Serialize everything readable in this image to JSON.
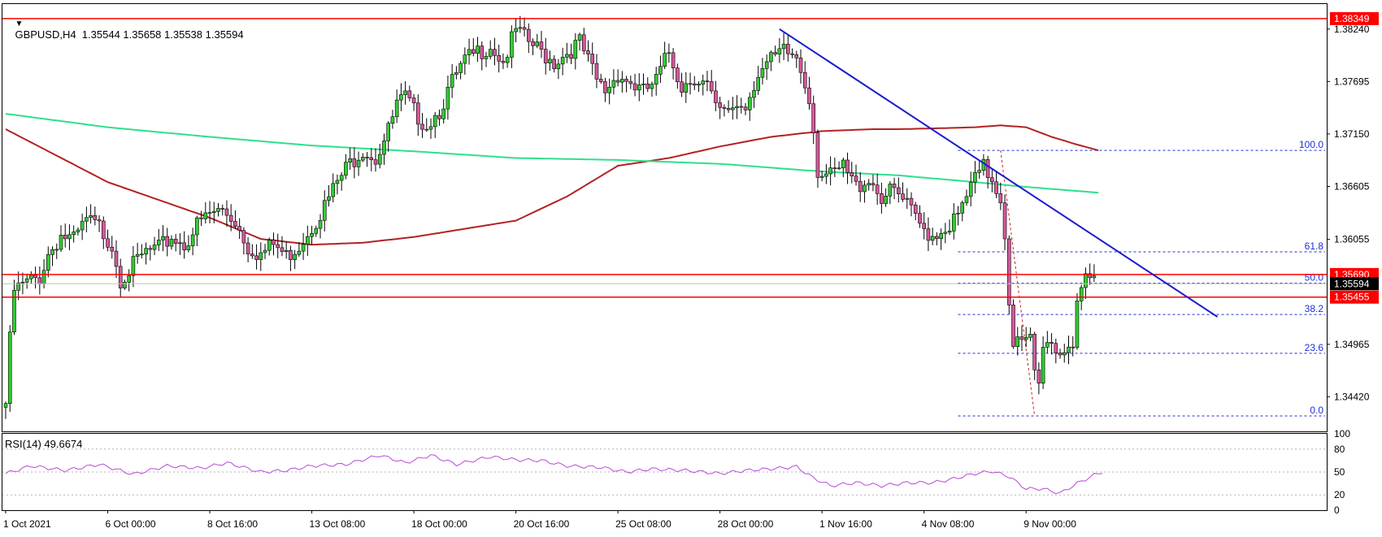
{
  "chart_header": {
    "title": "GBPUSD,H4  1.35544 1.35658 1.35538 1.35594",
    "indicator": "RSI(14) 49.6674"
  },
  "colors": {
    "bull": "#32cd32",
    "bear": "#d6589a",
    "wick": "#000000",
    "ma_slow": "#2ee08a",
    "ma_fast": "#b22222",
    "level": "#ff0000",
    "trendline": "#1a1acd",
    "fib": "#1f2fd6",
    "rsi": "#b84ad8",
    "grid": "#b4b4b4",
    "fib_zero_line": "#d01b1b"
  },
  "chart_data": [
    {
      "type": "candlestick",
      "symbol": "GBPUSD",
      "timeframe": "H4",
      "ylim": [
        1.3406,
        1.385
      ],
      "price_ticks": [
        {
          "v": 1.3824,
          "label": "1.38240"
        },
        {
          "v": 1.37695,
          "label": "1.37695"
        },
        {
          "v": 1.3715,
          "label": "1.37150"
        },
        {
          "v": 1.36605,
          "label": "1.36605"
        },
        {
          "v": 1.36055,
          "label": "1.36055"
        },
        {
          "v": 1.34965,
          "label": "1.34965"
        },
        {
          "v": 1.3442,
          "label": "1.34420"
        }
      ],
      "time_labels": [
        {
          "i": 0,
          "label": "1 Oct 2021"
        },
        {
          "i": 24,
          "label": "6 Oct 00:00"
        },
        {
          "i": 48,
          "label": "8 Oct 16:00"
        },
        {
          "i": 72,
          "label": "13 Oct 08:00"
        },
        {
          "i": 96,
          "label": "18 Oct 00:00"
        },
        {
          "i": 120,
          "label": "20 Oct 16:00"
        },
        {
          "i": 144,
          "label": "25 Oct 08:00"
        },
        {
          "i": 168,
          "label": "28 Oct 00:00"
        },
        {
          "i": 192,
          "label": "1 Nov 16:00"
        },
        {
          "i": 216,
          "label": "4 Nov 08:00"
        },
        {
          "i": 240,
          "label": "9 Nov 00:00"
        }
      ],
      "close_anchors": [
        [
          0,
          1.3435
        ],
        [
          1,
          1.35
        ],
        [
          2,
          1.3552
        ],
        [
          5,
          1.356
        ],
        [
          8,
          1.3566
        ],
        [
          10,
          1.359
        ],
        [
          13,
          1.361
        ],
        [
          16,
          1.3604
        ],
        [
          19,
          1.3625
        ],
        [
          22,
          1.3618
        ],
        [
          25,
          1.36
        ],
        [
          27,
          1.3565
        ],
        [
          30,
          1.3578
        ],
        [
          33,
          1.3592
        ],
        [
          36,
          1.3595
        ],
        [
          39,
          1.3608
        ],
        [
          42,
          1.36
        ],
        [
          45,
          1.362
        ],
        [
          48,
          1.3632
        ],
        [
          51,
          1.3636
        ],
        [
          54,
          1.3625
        ],
        [
          57,
          1.3598
        ],
        [
          60,
          1.359
        ],
        [
          63,
          1.36
        ],
        [
          66,
          1.3588
        ],
        [
          69,
          1.36
        ],
        [
          72,
          1.362
        ],
        [
          75,
          1.364
        ],
        [
          78,
          1.3665
        ],
        [
          81,
          1.3685
        ],
        [
          84,
          1.37
        ],
        [
          87,
          1.369
        ],
        [
          90,
          1.3718
        ],
        [
          92,
          1.3745
        ],
        [
          94,
          1.3752
        ],
        [
          96,
          1.3738
        ],
        [
          99,
          1.3725
        ],
        [
          102,
          1.374
        ],
        [
          105,
          1.3768
        ],
        [
          108,
          1.379
        ],
        [
          111,
          1.38
        ],
        [
          114,
          1.3808
        ],
        [
          117,
          1.379
        ],
        [
          120,
          1.3822
        ],
        [
          123,
          1.381
        ],
        [
          126,
          1.38
        ],
        [
          129,
          1.379
        ],
        [
          132,
          1.38
        ],
        [
          135,
          1.381
        ],
        [
          137,
          1.379
        ],
        [
          139,
          1.377
        ],
        [
          141,
          1.376
        ],
        [
          144,
          1.3778
        ],
        [
          147,
          1.3768
        ],
        [
          150,
          1.3758
        ],
        [
          153,
          1.377
        ],
        [
          156,
          1.38
        ],
        [
          159,
          1.3765
        ],
        [
          162,
          1.3775
        ],
        [
          165,
          1.3765
        ],
        [
          167,
          1.374
        ],
        [
          169,
          1.3735
        ],
        [
          171,
          1.3745
        ],
        [
          174,
          1.3745
        ],
        [
          177,
          1.378
        ],
        [
          180,
          1.379
        ],
        [
          183,
          1.38
        ],
        [
          186,
          1.3795
        ],
        [
          189,
          1.3755
        ],
        [
          190,
          1.372
        ],
        [
          191,
          1.3678
        ],
        [
          194,
          1.367
        ],
        [
          197,
          1.368
        ],
        [
          200,
          1.366
        ],
        [
          203,
          1.367
        ],
        [
          206,
          1.365
        ],
        [
          209,
          1.3655
        ],
        [
          212,
          1.364
        ],
        [
          215,
          1.362
        ],
        [
          218,
          1.361
        ],
        [
          221,
          1.3618
        ],
        [
          224,
          1.3628
        ],
        [
          227,
          1.366
        ],
        [
          230,
          1.368
        ],
        [
          232,
          1.3668
        ],
        [
          234,
          1.365
        ],
        [
          235,
          1.361
        ],
        [
          236,
          1.3545
        ],
        [
          237,
          1.35
        ],
        [
          238,
          1.3498
        ],
        [
          240,
          1.3497
        ],
        [
          241,
          1.35
        ],
        [
          242,
          1.3465
        ],
        [
          243,
          1.3455
        ],
        [
          244,
          1.349
        ],
        [
          245,
          1.3505
        ],
        [
          246,
          1.35
        ],
        [
          247,
          1.3488
        ],
        [
          249,
          1.3492
        ],
        [
          251,
          1.35
        ],
        [
          252,
          1.3545
        ],
        [
          253,
          1.3555
        ],
        [
          254,
          1.356
        ],
        [
          255,
          1.3556
        ],
        [
          256,
          1.3559
        ]
      ],
      "ma_fast": [
        [
          0,
          1.372
        ],
        [
          24,
          1.3665
        ],
        [
          48,
          1.3628
        ],
        [
          60,
          1.3606
        ],
        [
          72,
          1.36
        ],
        [
          84,
          1.3602
        ],
        [
          96,
          1.3608
        ],
        [
          120,
          1.3625
        ],
        [
          132,
          1.365
        ],
        [
          144,
          1.3682
        ],
        [
          156,
          1.369
        ],
        [
          168,
          1.3702
        ],
        [
          180,
          1.3712
        ],
        [
          192,
          1.3718
        ],
        [
          204,
          1.372
        ],
        [
          210,
          1.372
        ],
        [
          220,
          1.3721
        ],
        [
          228,
          1.3722
        ],
        [
          234,
          1.3724
        ],
        [
          240,
          1.3722
        ],
        [
          246,
          1.3712
        ],
        [
          252,
          1.3704
        ],
        [
          257,
          1.3698
        ]
      ],
      "ma_slow": [
        [
          0,
          1.3736
        ],
        [
          24,
          1.3722
        ],
        [
          48,
          1.3712
        ],
        [
          72,
          1.3703
        ],
        [
          96,
          1.3697
        ],
        [
          120,
          1.369
        ],
        [
          144,
          1.3688
        ],
        [
          168,
          1.3684
        ],
        [
          180,
          1.368
        ],
        [
          192,
          1.3676
        ],
        [
          210,
          1.3672
        ],
        [
          228,
          1.3665
        ],
        [
          240,
          1.366
        ],
        [
          257,
          1.3654
        ]
      ],
      "levels": [
        {
          "price": 1.38349,
          "label": "1.38349"
        },
        {
          "price": 1.3569,
          "label": "1.35690"
        },
        {
          "price": 1.35455,
          "label": "1.35455"
        }
      ],
      "current_price": {
        "price": 1.35594,
        "label": "1.35594"
      },
      "trendline": {
        "from": [
          182,
          1.3824
        ],
        "to": [
          285,
          1.3525
        ]
      },
      "fibonacci": {
        "high": 1.3698,
        "low": 1.3422,
        "start_i": 224,
        "end_i": 325,
        "levels": [
          {
            "ratio": 1.0,
            "label": "100.0"
          },
          {
            "ratio": 0.618,
            "label": "61.8"
          },
          {
            "ratio": 0.5,
            "label": "50.0"
          },
          {
            "ratio": 0.382,
            "label": "38.2"
          },
          {
            "ratio": 0.236,
            "label": "23.6"
          },
          {
            "ratio": 0.0,
            "label": "0.0"
          }
        ]
      }
    },
    {
      "type": "line",
      "name": "RSI(14)",
      "current": 49.6674,
      "ylim": [
        0,
        100
      ],
      "ticks": [
        100,
        80,
        50,
        20,
        0
      ],
      "anchors": [
        [
          0,
          48
        ],
        [
          6,
          58
        ],
        [
          14,
          52
        ],
        [
          22,
          60
        ],
        [
          30,
          47
        ],
        [
          38,
          58
        ],
        [
          46,
          55
        ],
        [
          52,
          62
        ],
        [
          60,
          50
        ],
        [
          66,
          52
        ],
        [
          72,
          58
        ],
        [
          80,
          60
        ],
        [
          88,
          72
        ],
        [
          94,
          62
        ],
        [
          100,
          72
        ],
        [
          106,
          60
        ],
        [
          114,
          70
        ],
        [
          120,
          66
        ],
        [
          126,
          65
        ],
        [
          132,
          58
        ],
        [
          140,
          56
        ],
        [
          146,
          50
        ],
        [
          152,
          54
        ],
        [
          160,
          52
        ],
        [
          168,
          48
        ],
        [
          174,
          52
        ],
        [
          182,
          55
        ],
        [
          186,
          57
        ],
        [
          190,
          42
        ],
        [
          194,
          32
        ],
        [
          200,
          36
        ],
        [
          206,
          32
        ],
        [
          212,
          36
        ],
        [
          218,
          36
        ],
        [
          222,
          40
        ],
        [
          228,
          48
        ],
        [
          232,
          51
        ],
        [
          236,
          44
        ],
        [
          240,
          28
        ],
        [
          244,
          28
        ],
        [
          248,
          22
        ],
        [
          252,
          35
        ],
        [
          256,
          46
        ],
        [
          258,
          50
        ]
      ]
    }
  ]
}
